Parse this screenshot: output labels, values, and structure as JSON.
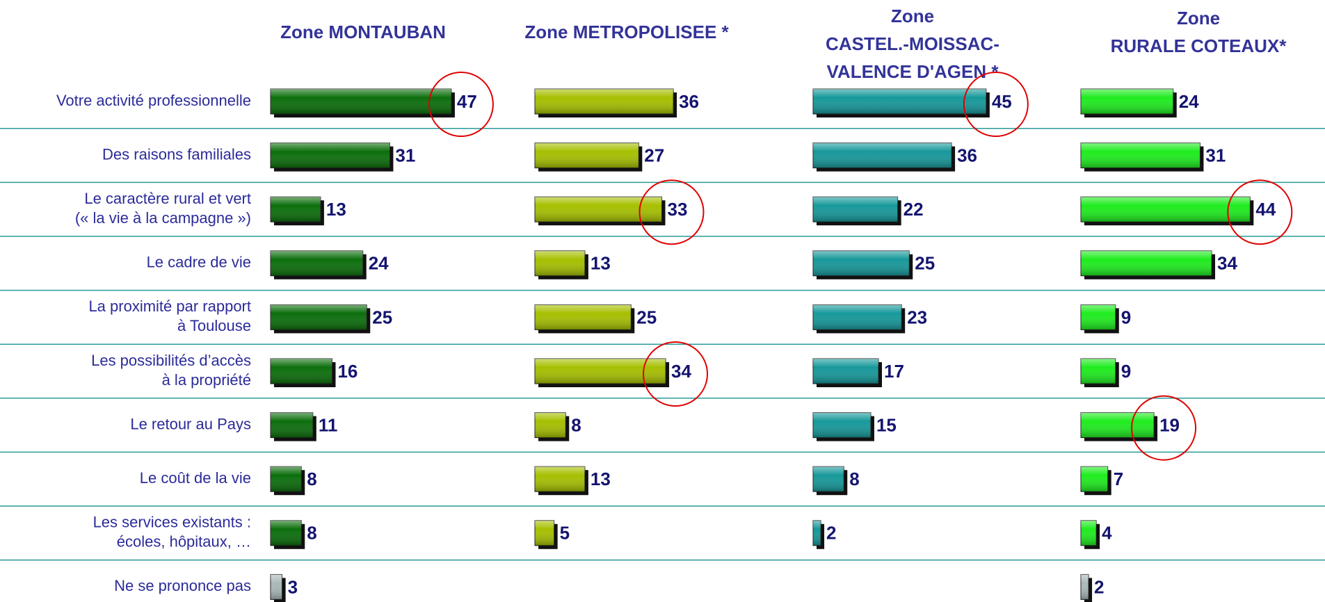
{
  "chart_data": {
    "type": "bar",
    "orientation": "horizontal",
    "categories": [
      [
        "Votre activité professionnelle"
      ],
      [
        "Des raisons familiales"
      ],
      [
        "Le caractère rural et vert",
        "(« la vie à la campagne »)"
      ],
      [
        "Le cadre de vie"
      ],
      [
        "La proximité par rapport",
        "à Toulouse"
      ],
      [
        "Les possibilités d’accès",
        "à la propriété"
      ],
      [
        "Le retour au Pays"
      ],
      [
        "Le coût de la vie"
      ],
      [
        "Les services existants :",
        "écoles, hôpitaux, …"
      ],
      [
        "Ne se prononce pas"
      ]
    ],
    "series": [
      {
        "name": [
          "Zone MONTAUBAN"
        ],
        "color": "#0b6e0b",
        "values": [
          47,
          31,
          13,
          24,
          25,
          16,
          11,
          8,
          8,
          3
        ],
        "highlighted": [
          0
        ]
      },
      {
        "name": [
          "Zone METROPOLISEE *"
        ],
        "color": "#a6bf00",
        "values": [
          36,
          27,
          33,
          13,
          25,
          34,
          8,
          13,
          5,
          null
        ],
        "highlighted": [
          2,
          5
        ]
      },
      {
        "name": [
          "Zone",
          "CASTEL.-MOISSAC-",
          "VALENCE D'AGEN *"
        ],
        "color": "#16989a",
        "values": [
          45,
          36,
          22,
          25,
          23,
          17,
          15,
          8,
          2,
          null
        ],
        "highlighted": [
          0
        ]
      },
      {
        "name": [
          "Zone",
          "RURALE COTEAUX*"
        ],
        "color": "#1eec1e",
        "values": [
          24,
          31,
          44,
          34,
          9,
          9,
          19,
          7,
          4,
          2
        ],
        "highlighted": [
          2,
          6
        ]
      }
    ],
    "last_category_color": "#aab8b8",
    "highlight_color": "#e00000"
  }
}
